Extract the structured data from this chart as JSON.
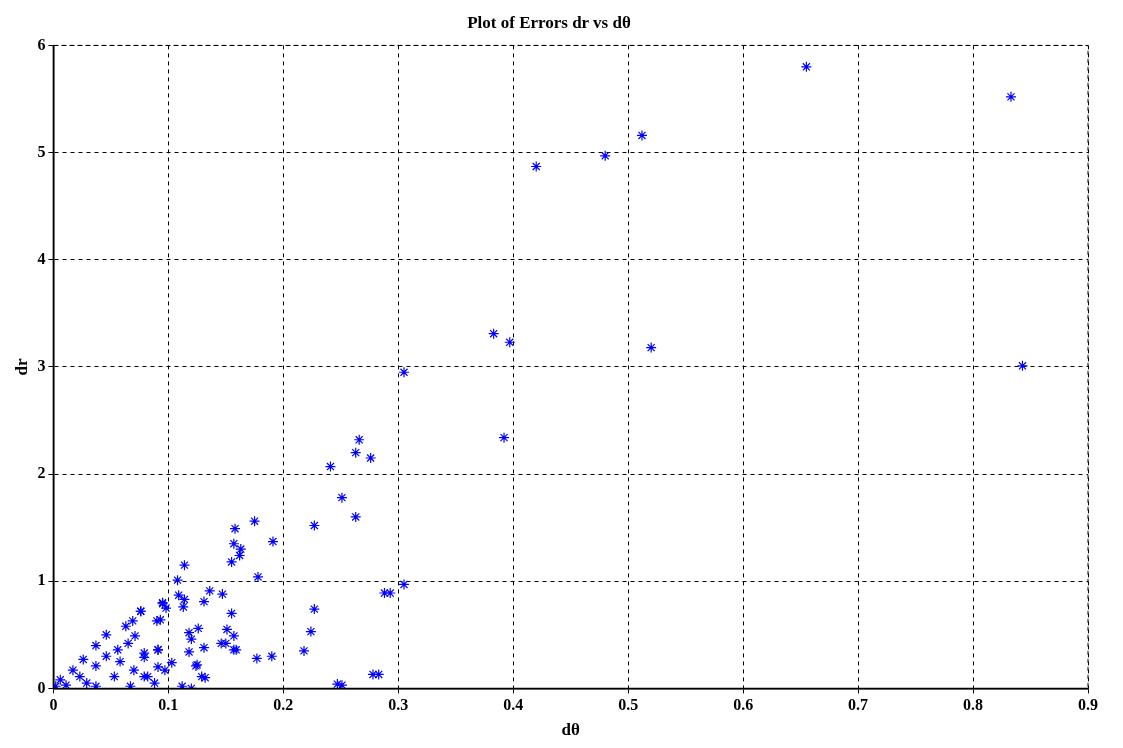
{
  "chart_data": {
    "type": "scatter",
    "title": "Plot of Errors dr vs dθ",
    "xlabel": "dθ",
    "ylabel": "dr",
    "xlim": [
      0,
      0.9
    ],
    "xticks": [
      0,
      0.1,
      0.2,
      0.3,
      0.4,
      0.5,
      0.6,
      0.7,
      0.8,
      0.9
    ],
    "ylim": [
      0,
      6
    ],
    "yticks": [
      0,
      1,
      2,
      3,
      4,
      5,
      6
    ],
    "grid": true,
    "marker": "cross",
    "series": [
      {
        "color": "#0000ff",
        "x": [
          0.655,
          0.833,
          0.843,
          0.42,
          0.48,
          0.512,
          0.52,
          0.383,
          0.397,
          0.392,
          0.305,
          0.305,
          0.288,
          0.278,
          0.247,
          0.266,
          0.263,
          0.276,
          0.241,
          0.251,
          0.263,
          0.227,
          0.175,
          0.158,
          0.191,
          0.157,
          0.163,
          0.162,
          0.155,
          0.114,
          0.178,
          0.108,
          0.293,
          0.109,
          0.114,
          0.136,
          0.147,
          0.131,
          0.095,
          0.113,
          0.227,
          0.155,
          0.098,
          0.093,
          0.076,
          0.224,
          0.126,
          0.118,
          0.151,
          0.157,
          0.146,
          0.157,
          0.218,
          0.131,
          0.118,
          0.091,
          0.177,
          0.19,
          0.125,
          0.132,
          0.283,
          0.251,
          0.112,
          0.12,
          0.103,
          0.079,
          0.079,
          0.091,
          0.095,
          0.09,
          0.076,
          0.069,
          0.063,
          0.071,
          0.046,
          0.037,
          0.056,
          0.026,
          0.058,
          0.079,
          0.091,
          0.017,
          0.037,
          0.07,
          0.053,
          0.006,
          0.023,
          0.082,
          0.097,
          0.002,
          0.011,
          0.037,
          0.067,
          0.088,
          0.029,
          0.046,
          0.065,
          0.124,
          0.129,
          0.12,
          0.15,
          0.159
        ],
        "values": [
          5.8,
          5.52,
          3.01,
          4.87,
          4.97,
          5.16,
          3.18,
          3.31,
          3.23,
          2.34,
          2.95,
          0.97,
          0.89,
          0.13,
          0.04,
          2.32,
          2.2,
          2.15,
          2.07,
          1.78,
          1.6,
          1.52,
          1.56,
          1.49,
          1.37,
          1.35,
          1.3,
          1.24,
          1.18,
          1.15,
          1.04,
          1.01,
          0.89,
          0.87,
          0.83,
          0.91,
          0.88,
          0.81,
          0.8,
          0.76,
          0.74,
          0.7,
          0.75,
          0.64,
          0.72,
          0.53,
          0.56,
          0.52,
          0.55,
          0.49,
          0.42,
          0.36,
          0.35,
          0.38,
          0.34,
          0.36,
          0.28,
          0.3,
          0.22,
          0.1,
          0.13,
          0.03,
          0.02,
          0.0,
          0.24,
          0.11,
          0.29,
          0.2,
          0.79,
          0.63,
          0.72,
          0.63,
          0.58,
          0.49,
          0.5,
          0.4,
          0.36,
          0.27,
          0.25,
          0.33,
          0.36,
          0.17,
          0.21,
          0.17,
          0.11,
          0.08,
          0.11,
          0.11,
          0.17,
          0.02,
          0.03,
          0.02,
          0.02,
          0.05,
          0.05,
          0.3,
          0.42,
          0.21,
          0.11,
          0.46,
          0.42,
          0.36
        ]
      }
    ]
  }
}
